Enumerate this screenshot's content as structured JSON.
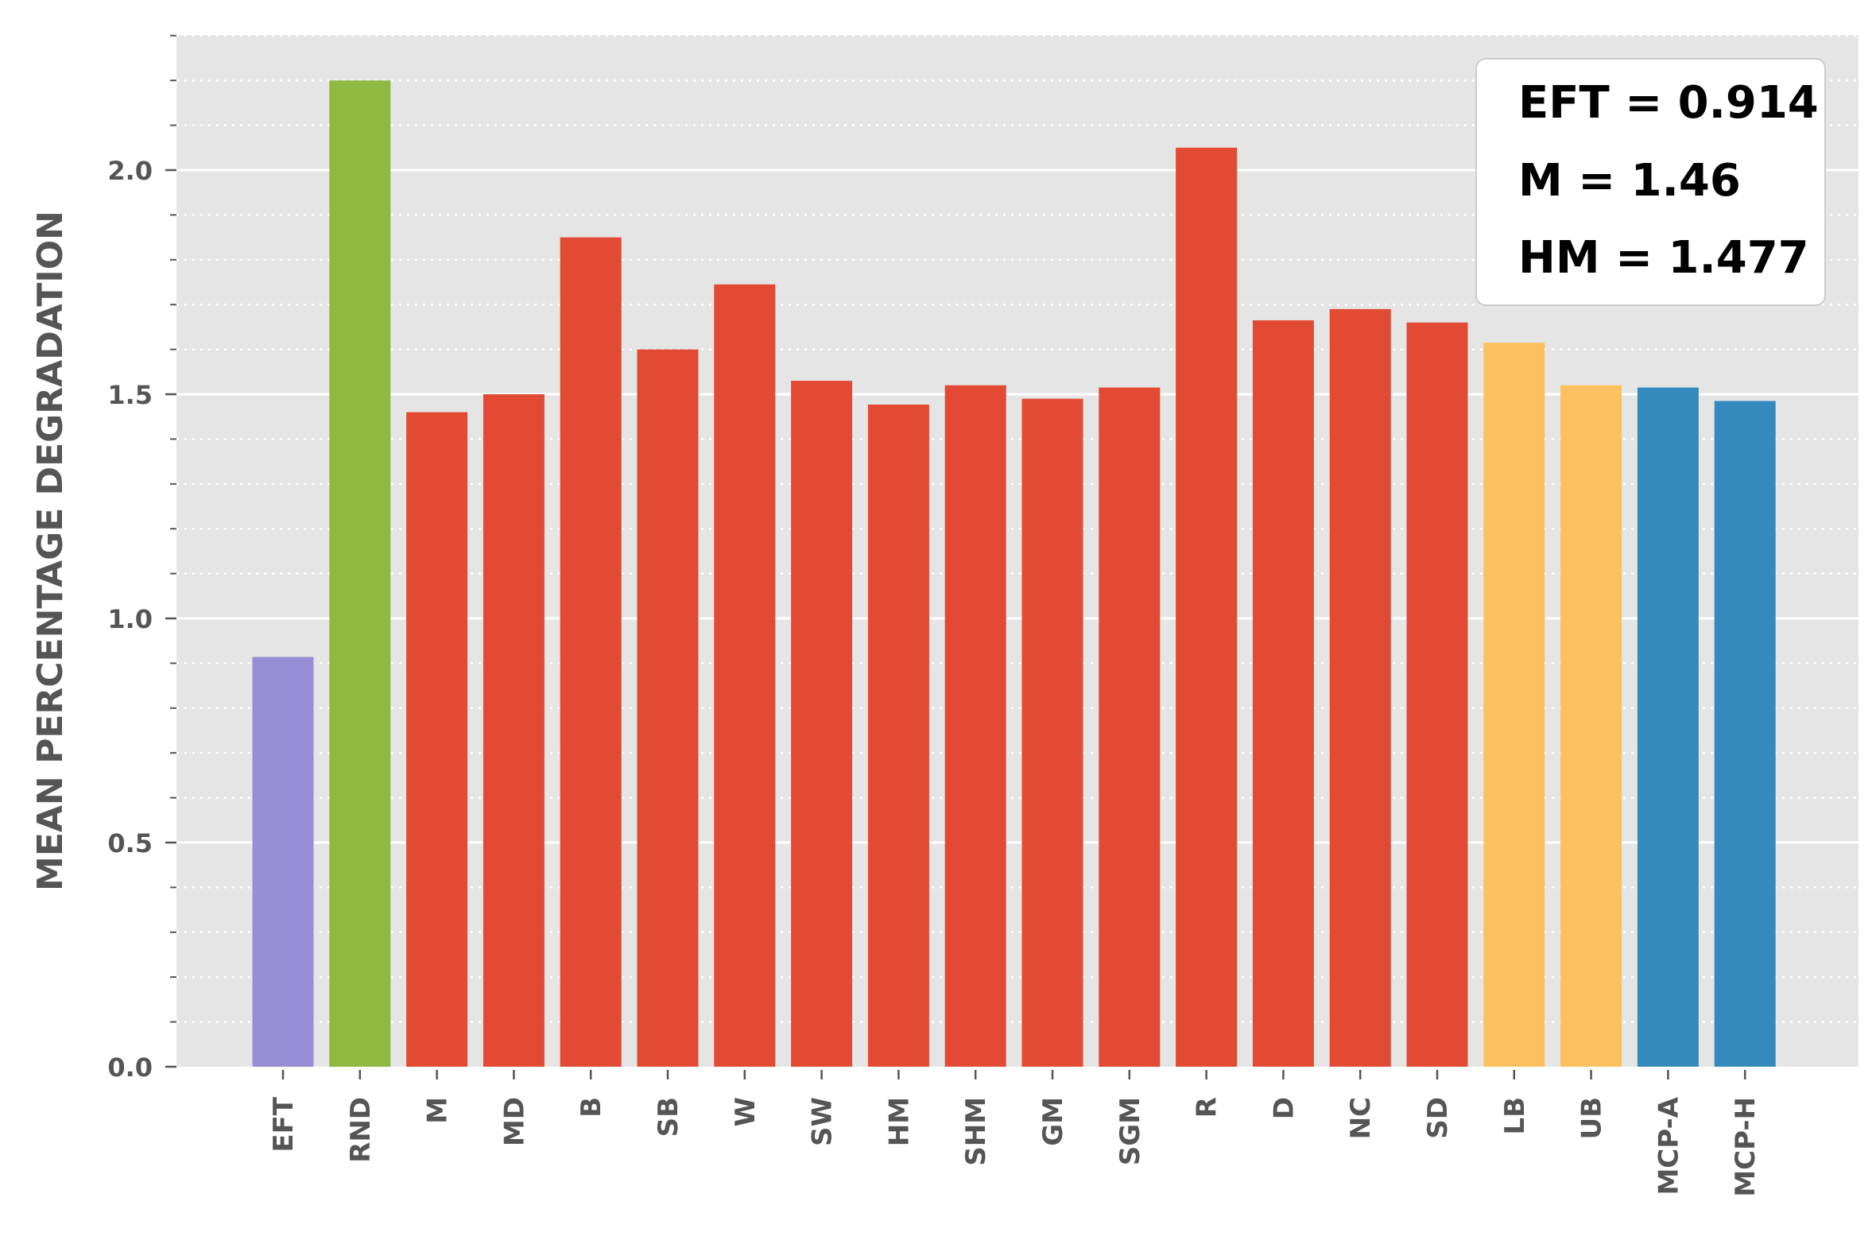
{
  "chart_data": {
    "type": "bar",
    "title": "",
    "xlabel": "",
    "ylabel": "MEAN PERCENTAGE DEGRADATION",
    "ylim": [
      0,
      2.3
    ],
    "yticks": [
      "0.0",
      "0.5",
      "1.0",
      "1.5",
      "2.0"
    ],
    "grid": true,
    "categories": [
      "EFT",
      "RND",
      "M",
      "MD",
      "B",
      "SB",
      "W",
      "SW",
      "HM",
      "SHM",
      "GM",
      "SGM",
      "R",
      "D",
      "NC",
      "SD",
      "LB",
      "UB",
      "MCP-A",
      "MCP-H"
    ],
    "values": [
      0.914,
      2.2,
      1.46,
      1.5,
      1.85,
      1.6,
      1.745,
      1.53,
      1.477,
      1.52,
      1.49,
      1.515,
      2.05,
      1.665,
      1.69,
      1.66,
      1.615,
      1.52,
      1.515,
      1.485
    ],
    "colors": [
      "#988ED5",
      "#8EBA42",
      "#E24A33",
      "#E24A33",
      "#E24A33",
      "#E24A33",
      "#E24A33",
      "#E24A33",
      "#E24A33",
      "#E24A33",
      "#E24A33",
      "#E24A33",
      "#E24A33",
      "#E24A33",
      "#E24A33",
      "#E24A33",
      "#FBC15E",
      "#FBC15E",
      "#348ABD",
      "#348ABD"
    ],
    "annotation": {
      "placement": "top-right",
      "lines": [
        "EFT = 0.914",
        "M = 1.46",
        "HM = 1.477"
      ]
    }
  }
}
